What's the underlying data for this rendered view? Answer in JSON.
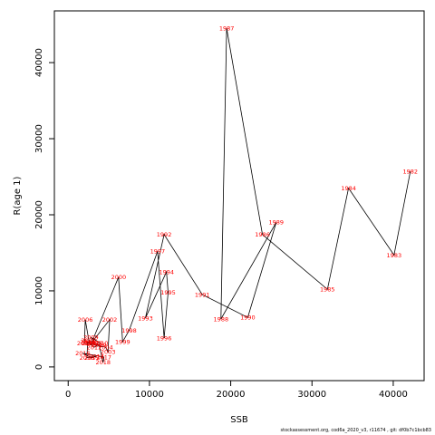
{
  "chart_data": {
    "type": "line",
    "xlabel": "SSB",
    "ylabel": "R(age 1)",
    "xlim": [
      -1700,
      43800
    ],
    "ylim": [
      -1800,
      46800
    ],
    "xticks": [
      0,
      10000,
      20000,
      30000,
      40000
    ],
    "yticks": [
      0,
      10000,
      20000,
      30000,
      40000
    ],
    "grid": false,
    "line_color": "#000000",
    "label_color": "#ff0000",
    "points": [
      {
        "year": "1982",
        "x": 42100,
        "y": 25700
      },
      {
        "year": "1983",
        "x": 40100,
        "y": 14700
      },
      {
        "year": "1984",
        "x": 34500,
        "y": 23500
      },
      {
        "year": "1985",
        "x": 31900,
        "y": 10200
      },
      {
        "year": "1986",
        "x": 23900,
        "y": 17400
      },
      {
        "year": "1987",
        "x": 19500,
        "y": 44500
      },
      {
        "year": "1988",
        "x": 18800,
        "y": 6300
      },
      {
        "year": "1989",
        "x": 25600,
        "y": 19000
      },
      {
        "year": "1990",
        "x": 22100,
        "y": 6500
      },
      {
        "year": "1991",
        "x": 16500,
        "y": 9500
      },
      {
        "year": "1992",
        "x": 11800,
        "y": 17400
      },
      {
        "year": "1993",
        "x": 9500,
        "y": 6400
      },
      {
        "year": "1994",
        "x": 12100,
        "y": 12500
      },
      {
        "year": "1995",
        "x": 12300,
        "y": 9800
      },
      {
        "year": "1996",
        "x": 11800,
        "y": 3800
      },
      {
        "year": "1997",
        "x": 11000,
        "y": 15200
      },
      {
        "year": "1998",
        "x": 7500,
        "y": 4800
      },
      {
        "year": "1999",
        "x": 6700,
        "y": 3300
      },
      {
        "year": "2000",
        "x": 6200,
        "y": 11800
      },
      {
        "year": "2001",
        "x": 2900,
        "y": 3200
      },
      {
        "year": "2002",
        "x": 5100,
        "y": 6200
      },
      {
        "year": "2003",
        "x": 4900,
        "y": 2000
      },
      {
        "year": "2004",
        "x": 4600,
        "y": 2600
      },
      {
        "year": "2005",
        "x": 2600,
        "y": 3100
      },
      {
        "year": "2006",
        "x": 2100,
        "y": 6200
      },
      {
        "year": "2007",
        "x": 2000,
        "y": 3100
      },
      {
        "year": "2008",
        "x": 3300,
        "y": 3100
      },
      {
        "year": "2009",
        "x": 2800,
        "y": 3900
      },
      {
        "year": "2010",
        "x": 4000,
        "y": 3100
      },
      {
        "year": "2011",
        "x": 3200,
        "y": 2600
      },
      {
        "year": "2012",
        "x": 2400,
        "y": 3300
      },
      {
        "year": "2013",
        "x": 2300,
        "y": 1200
      },
      {
        "year": "2014",
        "x": 3500,
        "y": 1400
      },
      {
        "year": "2015",
        "x": 2900,
        "y": 1200
      },
      {
        "year": "2016",
        "x": 1800,
        "y": 1800
      },
      {
        "year": "2017",
        "x": 4400,
        "y": 1300
      },
      {
        "year": "2018",
        "x": 4300,
        "y": 600
      },
      {
        "year": "2019",
        "x": 3800,
        "y": 2900
      },
      {
        "year": "2020",
        "x": 2500,
        "y": 3500
      }
    ]
  },
  "footer": "stockassessment.org,  cod6a_2020_v3,  r11674 ,  git: df0b7c1bcb83"
}
